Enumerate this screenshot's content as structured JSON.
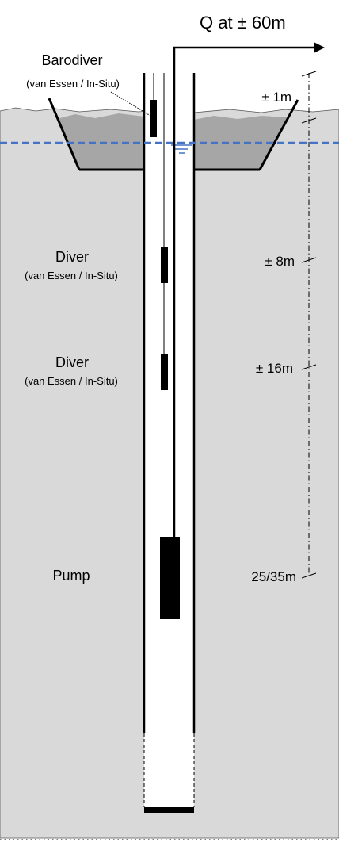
{
  "labels": {
    "discharge": "Q at ± 60m",
    "barodiver_title": "Barodiver",
    "barodiver_sub": "(van Essen / In-Situ)",
    "diver1_title": "Diver",
    "diver1_sub": "(van Essen / In-Situ)",
    "diver2_title": "Diver",
    "diver2_sub": "(van Essen / In-Situ)",
    "pump": "Pump"
  },
  "dimensions": {
    "d1": "± 1m",
    "d2": "± 8m",
    "d3": "± 16m",
    "d4": "25/35m"
  },
  "colors": {
    "ground": "#d9d9d9",
    "pond_water": "#a6a6a6",
    "water_table": "#4472c4",
    "ink": "#000000",
    "well": "#ffffff"
  }
}
